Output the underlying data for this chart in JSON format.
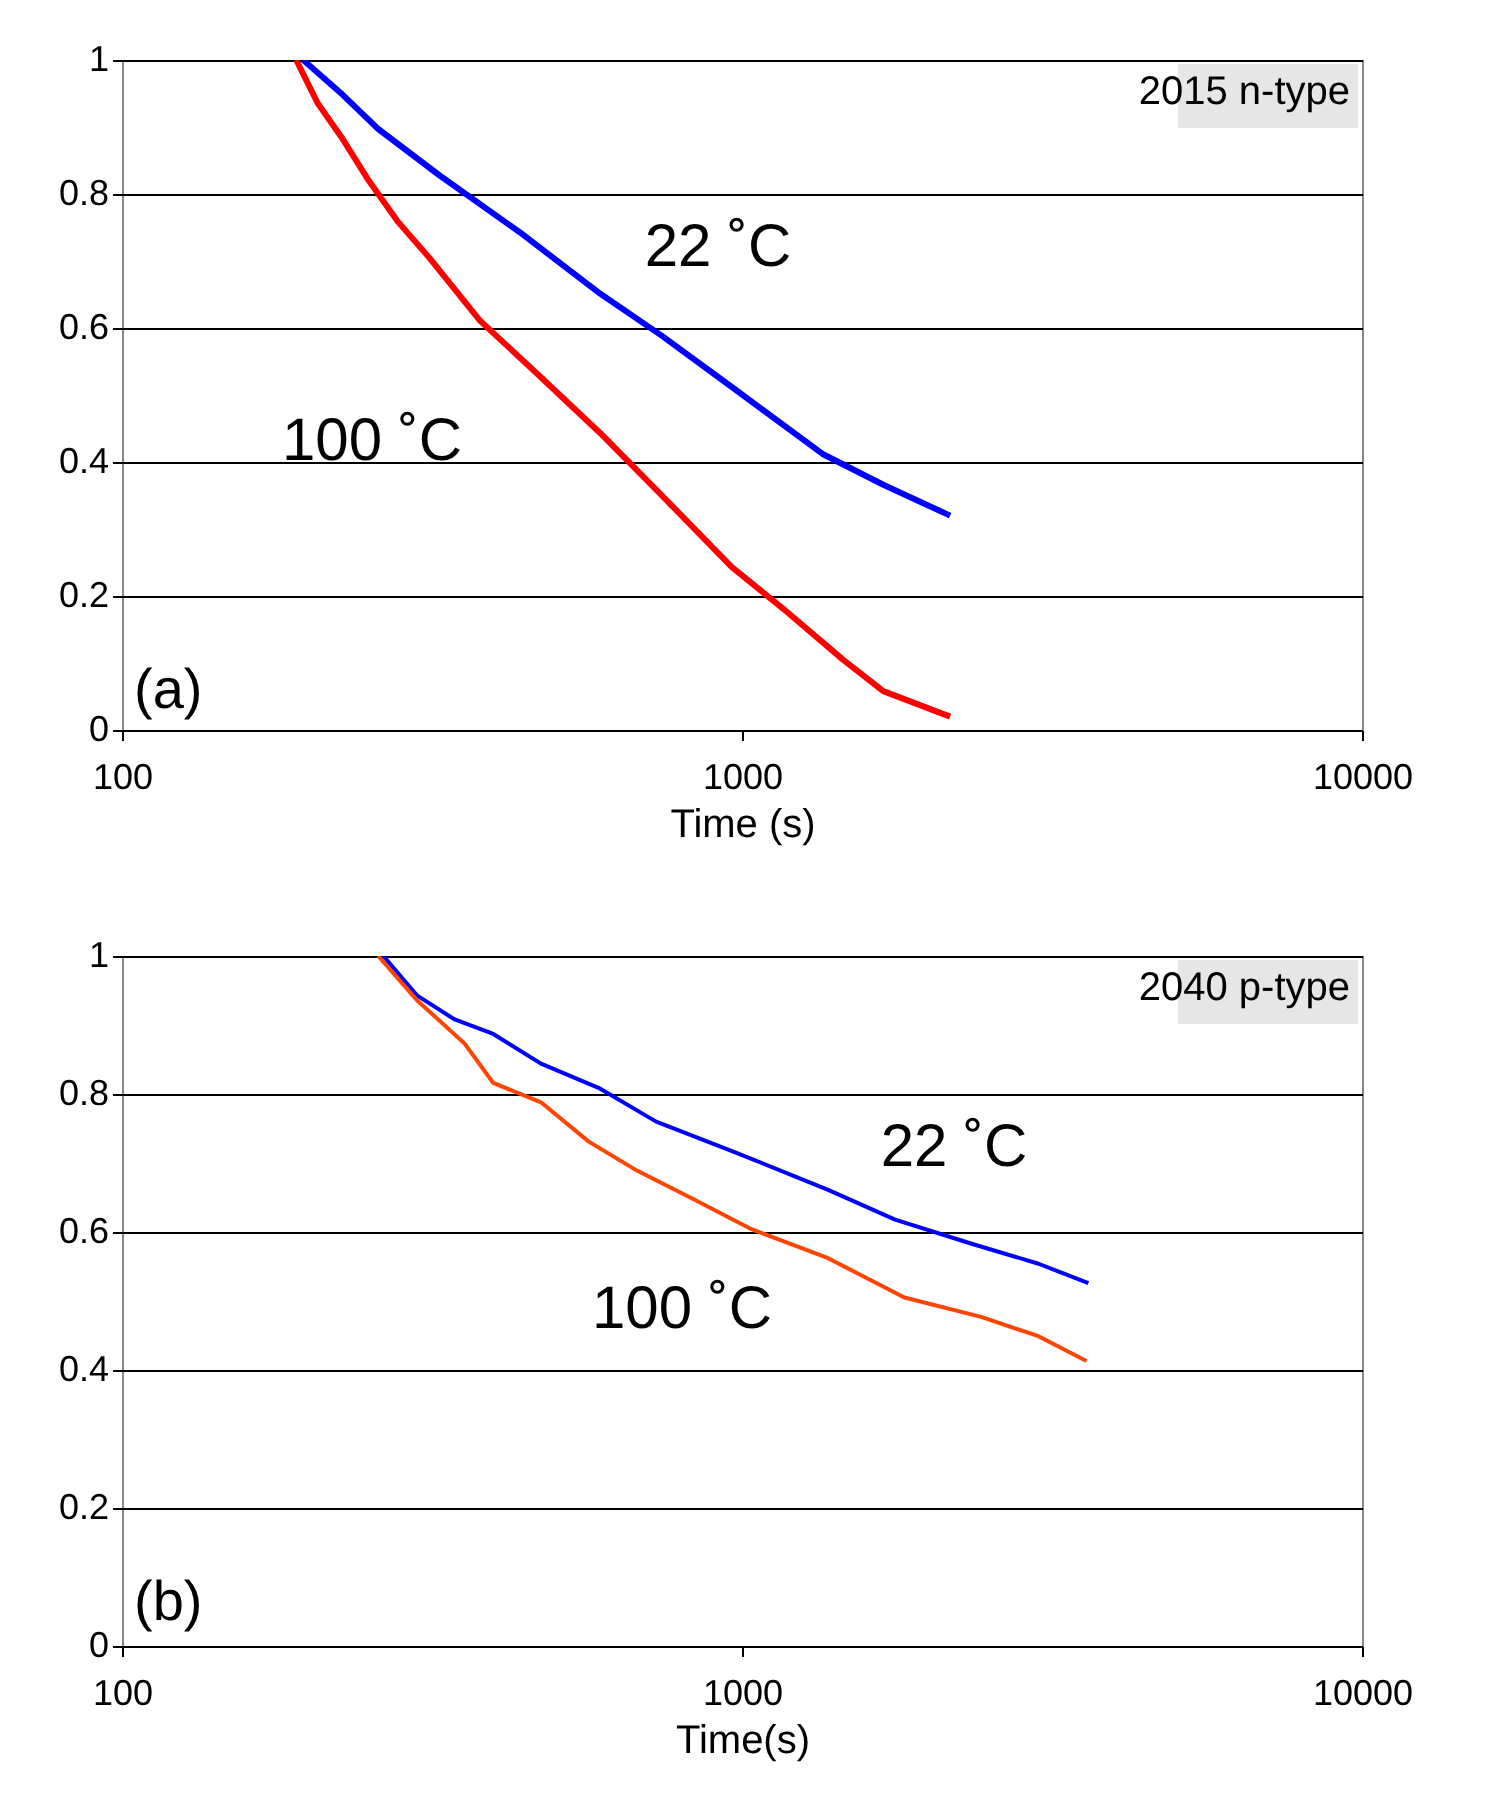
{
  "chart_data": [
    {
      "type": "line",
      "xlabel": "Time (s)",
      "log": "x",
      "xlim": [
        100,
        10000
      ],
      "xticks": [
        100,
        1000,
        10000
      ],
      "ylim": [
        0,
        1
      ],
      "yticks": [
        0,
        0.2,
        0.4,
        0.6,
        0.8,
        1
      ],
      "grid": "y",
      "line_style": "solid",
      "marker": "none",
      "series": [
        {
          "color": "#0000ff",
          "x": [
            196,
            227,
            259,
            325,
            438,
            591,
            741,
            963,
            1349,
            1690,
            2166
          ],
          "values": [
            1.0,
            0.948,
            0.897,
            0.828,
            0.743,
            0.651,
            0.589,
            0.512,
            0.412,
            0.366,
            0.32
          ]
        },
        {
          "color": "#ff0000",
          "x": [
            191,
            207,
            227,
            250,
            279,
            313,
            377,
            472,
            591,
            741,
            963,
            1162,
            1455,
            1690,
            2166
          ],
          "values": [
            1.0,
            0.935,
            0.882,
            0.82,
            0.758,
            0.705,
            0.612,
            0.528,
            0.443,
            0.351,
            0.243,
            0.182,
            0.105,
            0.058,
            0.02
          ]
        }
      ],
      "annotations": [
        "2015 n-type",
        "(a)",
        "22 ˚C",
        "100 ˚C"
      ]
    },
    {
      "type": "line",
      "xlabel": "Time(s)",
      "log": "x",
      "xlim": [
        100,
        10000
      ],
      "xticks": [
        100,
        1000,
        10000
      ],
      "ylim": [
        0,
        1
      ],
      "yticks": [
        0,
        0.2,
        0.4,
        0.6,
        0.8,
        1
      ],
      "grid": "y",
      "line_style": "solid",
      "marker": "none",
      "series": [
        {
          "color": "#0000ff",
          "x": [
            264,
            299,
            344,
            397,
            474,
            587,
            727,
            966,
            1377,
            1766,
            2346,
            3008,
            3620
          ],
          "values": [
            1.0,
            0.943,
            0.908,
            0.887,
            0.844,
            0.809,
            0.76,
            0.717,
            0.661,
            0.618,
            0.583,
            0.554,
            0.526
          ]
        },
        {
          "color": "#ff4500",
          "x": [
            259,
            299,
            357,
            397,
            474,
            566,
            677,
            837,
            1036,
            1377,
            1828,
            2431,
            3008,
            3594
          ],
          "values": [
            1.0,
            0.936,
            0.873,
            0.816,
            0.788,
            0.731,
            0.689,
            0.647,
            0.604,
            0.562,
            0.505,
            0.477,
            0.449,
            0.413
          ]
        }
      ],
      "annotations": [
        "2040 p-type",
        "(b)",
        "22 ˚C",
        "100 ˚C"
      ]
    }
  ]
}
